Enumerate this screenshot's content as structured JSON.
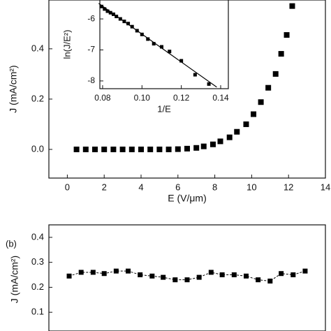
{
  "chart_data": [
    {
      "type": "scatter",
      "xlabel": "E (V/μm)",
      "ylabel": "J (mA/cm²)",
      "xlim": [
        -1,
        14
      ],
      "ylim": [
        -0.114,
        0.594
      ],
      "xticks": [
        0,
        2,
        4,
        6,
        8,
        10,
        12,
        14
      ],
      "yticks": [
        {
          "value": 0,
          "label": "0.0"
        },
        0.2,
        0.4
      ],
      "series": [
        {
          "color": "#000000",
          "x": [
            0.5,
            1.0,
            1.5,
            2.0,
            2.5,
            3.0,
            3.5,
            4.0,
            4.5,
            5.0,
            5.5,
            6.0,
            6.5,
            7.0,
            7.4,
            7.9,
            8.3,
            8.8,
            9.2,
            9.7,
            10.1,
            10.5,
            10.9,
            11.3,
            11.6,
            11.9,
            12.2
          ],
          "values": [
            0,
            0,
            0,
            0,
            0,
            0,
            0,
            0,
            0,
            0,
            0,
            0.001,
            0.003,
            0.006,
            0.012,
            0.02,
            0.032,
            0.048,
            0.07,
            0.1,
            0.14,
            0.188,
            0.245,
            0.3,
            0.38,
            0.455,
            0.57
          ]
        }
      ]
    },
    {
      "type": "scatter",
      "xlabel": "1/E",
      "ylabel": "ln(J/E²)",
      "xlim": [
        0.0786,
        0.1439
      ],
      "ylim": [
        -8.25,
        -5.39
      ],
      "xticks": [
        0.08,
        {
          "value": 0.1,
          "label": "0.10"
        },
        0.12,
        0.14
      ],
      "yticks": [
        -6,
        -7,
        -8
      ],
      "series": [
        {
          "color": "#000000",
          "x": [
            0.0795,
            0.081,
            0.0825,
            0.084,
            0.0855,
            0.087,
            0.089,
            0.091,
            0.093,
            0.095,
            0.0975,
            0.1,
            0.103,
            0.106,
            0.11,
            0.114,
            0.12,
            0.127,
            0.134
          ],
          "values": [
            -5.6,
            -5.68,
            -5.75,
            -5.8,
            -5.85,
            -5.92,
            -6.0,
            -6.08,
            -6.15,
            -6.25,
            -6.38,
            -6.5,
            -6.65,
            -6.8,
            -6.9,
            -7.05,
            -7.35,
            -7.8,
            -8.1
          ]
        }
      ],
      "fit": {
        "color": "#000000",
        "x": [
          0.078,
          0.138
        ],
        "values": [
          -5.5,
          -8.2
        ]
      }
    },
    {
      "type": "line",
      "label": "(b)",
      "ylabel": "J (mA/cm²)",
      "xlim": [
        -1,
        14
      ],
      "ylim": [
        0.025,
        0.45
      ],
      "yticks": [
        0.1,
        0.2,
        0.3,
        0.4
      ],
      "series": [
        {
          "color": "#000000",
          "x": [
            0.1,
            0.75,
            1.4,
            2.0,
            2.65,
            3.3,
            3.95,
            4.6,
            5.2,
            5.85,
            6.5,
            7.15,
            7.8,
            8.4,
            9.05,
            9.7,
            10.35,
            11.0,
            11.6,
            12.25,
            12.9
          ],
          "values": [
            0.245,
            0.26,
            0.26,
            0.255,
            0.265,
            0.265,
            0.25,
            0.245,
            0.24,
            0.23,
            0.23,
            0.24,
            0.26,
            0.25,
            0.25,
            0.245,
            0.23,
            0.225,
            0.255,
            0.25,
            0.265
          ]
        }
      ]
    }
  ]
}
